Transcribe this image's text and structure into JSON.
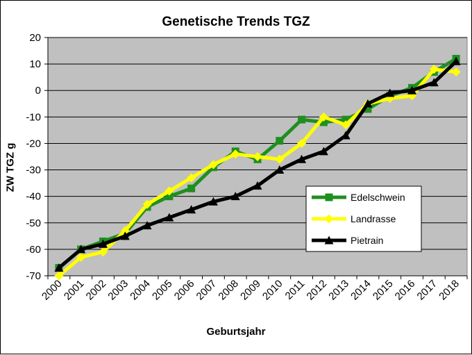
{
  "chart_data": {
    "type": "line",
    "title": "Genetische Trends TGZ",
    "xlabel": "Geburtsjahr",
    "ylabel": "ZW TGZ g",
    "ylim": [
      -70,
      20
    ],
    "yticks": [
      20,
      10,
      0,
      -10,
      -20,
      -30,
      -40,
      -50,
      -60,
      -70
    ],
    "grid": true,
    "legend_position": "right",
    "categories": [
      "2000",
      "2001",
      "2002",
      "2003",
      "2004",
      "2005",
      "2006",
      "2007",
      "2008",
      "2009",
      "2010",
      "2011",
      "2012",
      "2013",
      "2014",
      "2015",
      "2016",
      "2017",
      "2018"
    ],
    "series": [
      {
        "name": "Edelschwein",
        "color": "#1f8f1f",
        "marker": "square",
        "values": [
          -67,
          -60,
          -57,
          -54,
          -44,
          -40,
          -37,
          -29,
          -23,
          -26,
          -19,
          -11,
          -12,
          -11,
          -7,
          -2,
          1,
          7,
          12
        ]
      },
      {
        "name": "Landrasse",
        "color": "#ffff00",
        "marker": "diamond",
        "values": [
          -71,
          -63,
          -61,
          -53,
          -43,
          -38,
          -33,
          -28,
          -24,
          -25,
          -26,
          -20,
          -10,
          -13,
          -5,
          -3,
          -2,
          8,
          7
        ]
      },
      {
        "name": "Pietrain",
        "color": "#000000",
        "marker": "triangle",
        "values": [
          -67,
          -60,
          -58,
          -55,
          -51,
          -48,
          -45,
          -42,
          -40,
          -36,
          -30,
          -26,
          -23,
          -17,
          -5,
          -1,
          0,
          3,
          11
        ]
      }
    ],
    "plot_background": "#c0c0c0"
  }
}
